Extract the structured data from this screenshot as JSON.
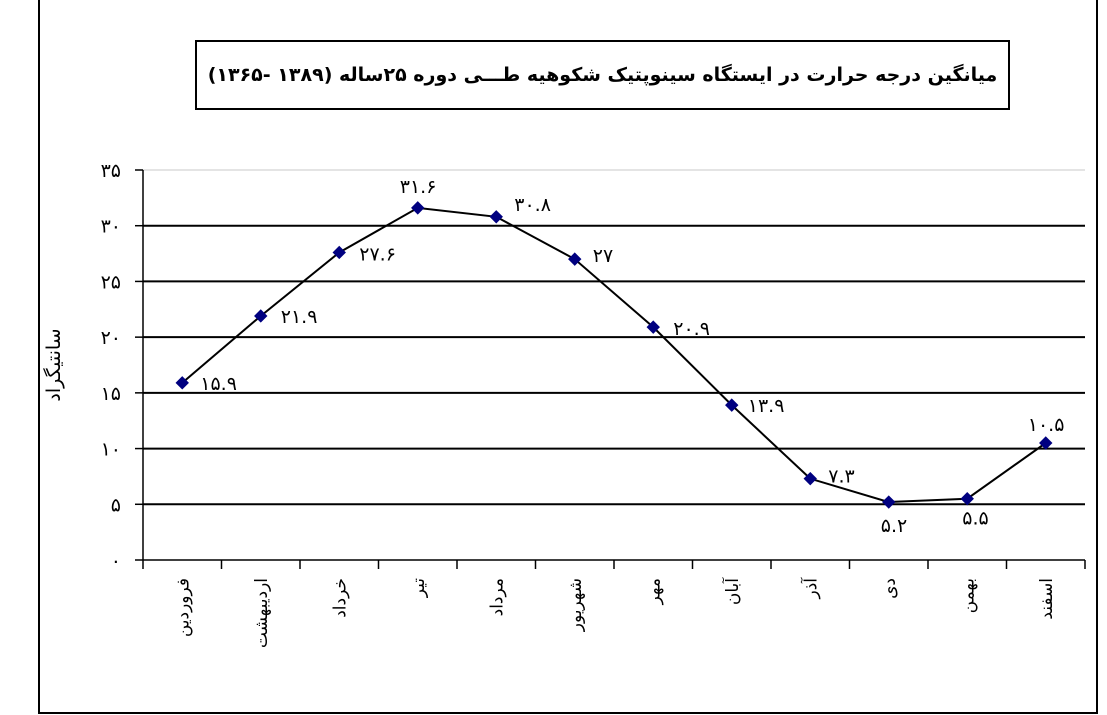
{
  "chart_data": {
    "type": "line",
    "title": "میانگین درجه حرارت در ایستگاه سینوپتیک شکوهیه طـــی دوره ۲۵ساله (۱۳۸۹ -۱۳۶۵)",
    "ylabel": "سانتیگراد",
    "xlabel": "",
    "ylim": [
      0,
      35
    ],
    "y_ticks": [
      0,
      5,
      10,
      15,
      20,
      25,
      30,
      35
    ],
    "y_tick_labels": [
      "۰",
      "۵",
      "۱۰",
      "۱۵",
      "۲۰",
      "۲۵",
      "۳۰",
      "۳۵"
    ],
    "grid": true,
    "categories": [
      "فروردین",
      "اردیبهشت",
      "خرداد",
      "تیر",
      "مرداد",
      "شهریور",
      "مهر",
      "آبان",
      "آذر",
      "دی",
      "بهمن",
      "اسفند"
    ],
    "values": [
      15.9,
      21.9,
      27.6,
      31.6,
      30.8,
      27,
      20.9,
      13.9,
      7.3,
      5.2,
      5.5,
      10.5
    ],
    "data_labels": [
      "۱۵.۹",
      "۲۱.۹",
      "۲۷.۶",
      "۳۱.۶",
      "۳۰.۸",
      "۲۷",
      "۲۰.۹",
      "۱۳.۹",
      "۷.۳",
      "۵.۲",
      "۵.۵",
      "۱۰.۵"
    ],
    "colors": {
      "line": "#000000",
      "marker": "#000080",
      "grid": "#000000"
    }
  }
}
